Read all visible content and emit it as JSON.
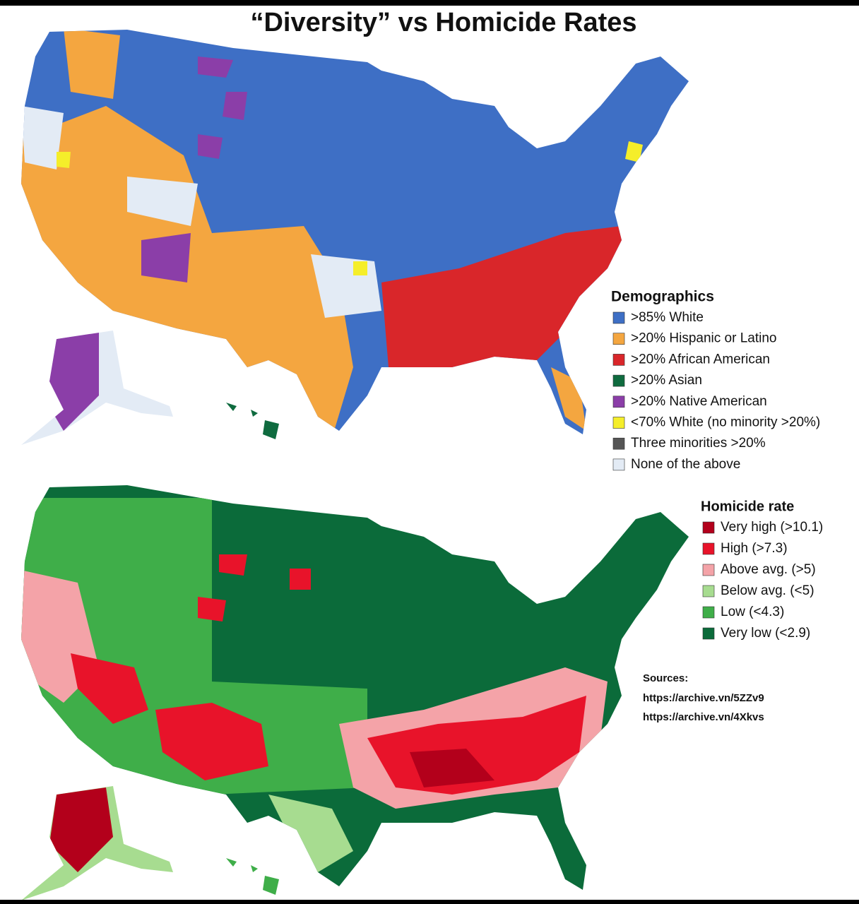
{
  "title": "“Diversity” vs Homicide Rates",
  "demographics": {
    "title": "Demographics",
    "items": [
      {
        "label": ">85% White",
        "color": "#3e6fc5"
      },
      {
        "label": ">20% Hispanic or Latino",
        "color": "#f4a640"
      },
      {
        "label": ">20% African American",
        "color": "#d9262a"
      },
      {
        "label": ">20% Asian",
        "color": "#0f6b3f"
      },
      {
        "label": ">20% Native American",
        "color": "#8b3ea8"
      },
      {
        "label": "<70% White (no minority >20%)",
        "color": "#f5ee2a"
      },
      {
        "label": "Three minorities >20%",
        "color": "#555555"
      },
      {
        "label": "None of the above",
        "color": "#e3ebf5"
      }
    ]
  },
  "homicide": {
    "title": "Homicide rate",
    "items": [
      {
        "label": "Very high (>10.1)",
        "color": "#b3001b"
      },
      {
        "label": "High (>7.3)",
        "color": "#e8132a"
      },
      {
        "label": "Above avg. (>5)",
        "color": "#f4a3a8"
      },
      {
        "label": "Below avg. (<5)",
        "color": "#a7dc90"
      },
      {
        "label": "Low (<4.3)",
        "color": "#3fae49"
      },
      {
        "label": "Very low (<2.9)",
        "color": "#0b6b3a"
      }
    ]
  },
  "sources": {
    "title": "Sources:",
    "links": [
      "https://archive.vn/5ZZv9",
      "https://archive.vn/4Xkvs"
    ]
  }
}
